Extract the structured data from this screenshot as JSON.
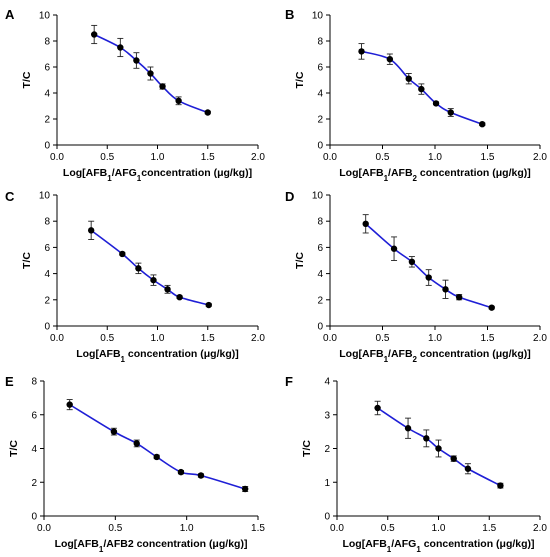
{
  "colors": {
    "curve": "#1f1fd6",
    "points": "#000000",
    "axes": "#000000"
  },
  "chart_data": [
    {
      "panel": "A",
      "type": "scatter",
      "xlabel": "Log[AFB{sub:1}/AFG{sub:1}concentration (μg/kg)]",
      "ylabel": "T/C",
      "xlim": [
        0,
        2
      ],
      "ylim": [
        0,
        10
      ],
      "xticks": [
        "0.0",
        "0.5",
        "1.0",
        "1.5",
        "2.0"
      ],
      "yticks": [
        "0",
        "2",
        "4",
        "6",
        "8",
        "10"
      ],
      "x": [
        0.37,
        0.63,
        0.79,
        0.93,
        1.05,
        1.21,
        1.5
      ],
      "y": [
        8.5,
        7.5,
        6.5,
        5.5,
        4.5,
        3.4,
        2.5
      ],
      "err": [
        0.7,
        0.7,
        0.6,
        0.5,
        0.2,
        0.3,
        0.1
      ]
    },
    {
      "panel": "B",
      "type": "scatter",
      "xlabel": "Log[AFB{sub:1}/AFB{sub:2} concentration (μg/kg)]",
      "ylabel": "T/C",
      "xlim": [
        0,
        2
      ],
      "ylim": [
        0,
        10
      ],
      "xticks": [
        "0.0",
        "0.5",
        "1.0",
        "1.5",
        "2.0"
      ],
      "yticks": [
        "0",
        "2",
        "4",
        "6",
        "8",
        "10"
      ],
      "x": [
        0.3,
        0.57,
        0.75,
        0.87,
        1.01,
        1.15,
        1.45
      ],
      "y": [
        7.2,
        6.6,
        5.1,
        4.3,
        3.2,
        2.5,
        1.6
      ],
      "err": [
        0.6,
        0.4,
        0.4,
        0.4,
        0.1,
        0.3,
        0.1
      ]
    },
    {
      "panel": "C",
      "type": "scatter",
      "xlabel": "Log[AFB{sub:1} concentration (μg/kg)]",
      "ylabel": "T/C",
      "xlim": [
        0,
        2
      ],
      "ylim": [
        0,
        10
      ],
      "xticks": [
        "0.0",
        "0.5",
        "1.0",
        "1.5",
        "2.0"
      ],
      "yticks": [
        "0",
        "2",
        "4",
        "6",
        "8",
        "10"
      ],
      "x": [
        0.34,
        0.65,
        0.81,
        0.96,
        1.1,
        1.22,
        1.51
      ],
      "y": [
        7.3,
        5.5,
        4.4,
        3.5,
        2.8,
        2.2,
        1.6
      ],
      "err": [
        0.7,
        0.1,
        0.4,
        0.4,
        0.3,
        0.1,
        0.1
      ]
    },
    {
      "panel": "D",
      "type": "scatter",
      "xlabel": "Log[AFB{sub:1}/AFB{sub:2} concentration (μg/kg)]",
      "ylabel": "T/C",
      "xlim": [
        0,
        2
      ],
      "ylim": [
        0,
        10
      ],
      "xticks": [
        "0.0",
        "0.5",
        "1.0",
        "1.5",
        "2.0"
      ],
      "yticks": [
        "0",
        "2",
        "4",
        "6",
        "8",
        "10"
      ],
      "x": [
        0.34,
        0.61,
        0.78,
        0.94,
        1.1,
        1.23,
        1.54
      ],
      "y": [
        7.8,
        5.9,
        4.9,
        3.7,
        2.8,
        2.2,
        1.4
      ],
      "err": [
        0.7,
        0.9,
        0.4,
        0.6,
        0.7,
        0.2,
        0.1
      ]
    },
    {
      "panel": "E",
      "type": "scatter",
      "xlabel": "Log[AFB{sub:1}/AFB2 concentration (μg/kg)]",
      "ylabel": "T/C",
      "xlim": [
        0,
        1.5
      ],
      "ylim": [
        0,
        8
      ],
      "xticks": [
        "0.0",
        "0.5",
        "1.0",
        "1.5"
      ],
      "yticks": [
        "0",
        "2",
        "4",
        "6",
        "8"
      ],
      "x": [
        0.18,
        0.49,
        0.65,
        0.79,
        0.96,
        1.1,
        1.41
      ],
      "y": [
        6.6,
        5.0,
        4.3,
        3.5,
        2.6,
        2.4,
        1.6
      ],
      "err": [
        0.3,
        0.2,
        0.2,
        0.1,
        0.1,
        0.1,
        0.15
      ]
    },
    {
      "panel": "F",
      "type": "scatter",
      "xlabel": "Log[AFB{sub:1}/AFG{sub:1} concentration (μg/kg)]",
      "ylabel": "T/C",
      "xlim": [
        0,
        2
      ],
      "ylim": [
        0,
        4
      ],
      "xticks": [
        "0.0",
        "0.5",
        "1.0",
        "1.5",
        "2.0"
      ],
      "yticks": [
        "0",
        "1",
        "2",
        "3",
        "4"
      ],
      "x": [
        0.4,
        0.7,
        0.88,
        1.0,
        1.15,
        1.29,
        1.61
      ],
      "y": [
        3.2,
        2.6,
        2.3,
        2.0,
        1.7,
        1.4,
        0.9
      ],
      "err": [
        0.2,
        0.3,
        0.25,
        0.25,
        0.08,
        0.15,
        0.07
      ]
    }
  ]
}
